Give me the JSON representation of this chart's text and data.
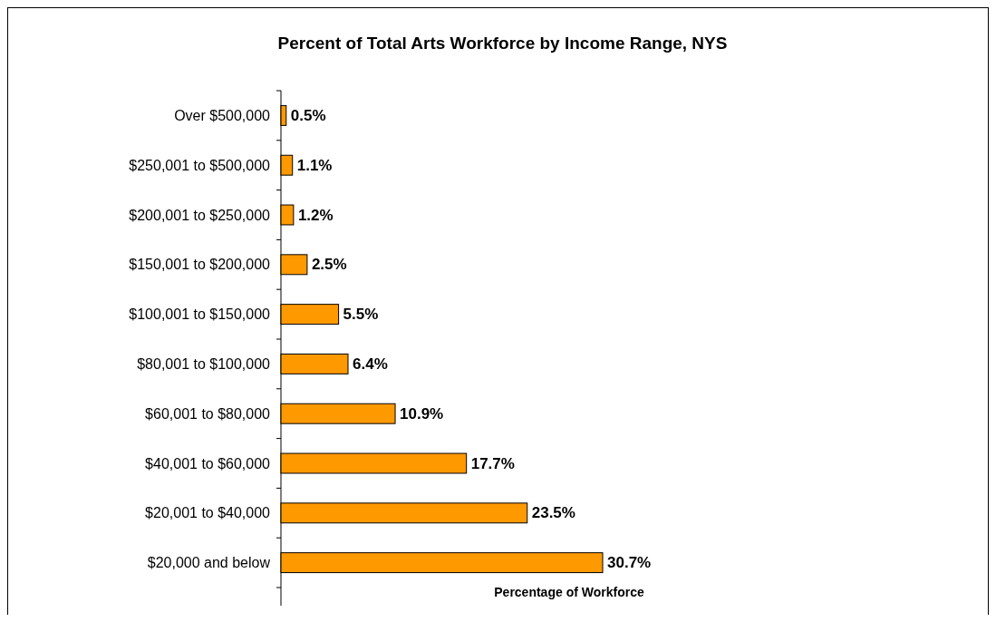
{
  "chart_data": {
    "type": "bar",
    "orientation": "horizontal",
    "title": "Percent of Total Arts Workforce by Income Range, NYS",
    "xlabel": "Percentage of Workforce",
    "categories": [
      "Over $500,000",
      "$250,001 to $500,000",
      "$200,001 to $250,000",
      "$150,001 to $200,000",
      "$100,001 to $150,000",
      "$80,001 to $100,000",
      "$60,001 to $80,000",
      "$40,001 to $60,000",
      "$20,001 to $40,000",
      "$20,000 and below"
    ],
    "values": [
      0.5,
      1.1,
      1.2,
      2.5,
      5.5,
      6.4,
      10.9,
      17.7,
      23.5,
      30.7
    ],
    "value_labels": [
      "0.5%",
      "1.1%",
      "1.2%",
      "2.5%",
      "5.5%",
      "6.4%",
      "10.9%",
      "17.7%",
      "23.5%",
      "30.7%"
    ],
    "color": "#ff9900"
  }
}
